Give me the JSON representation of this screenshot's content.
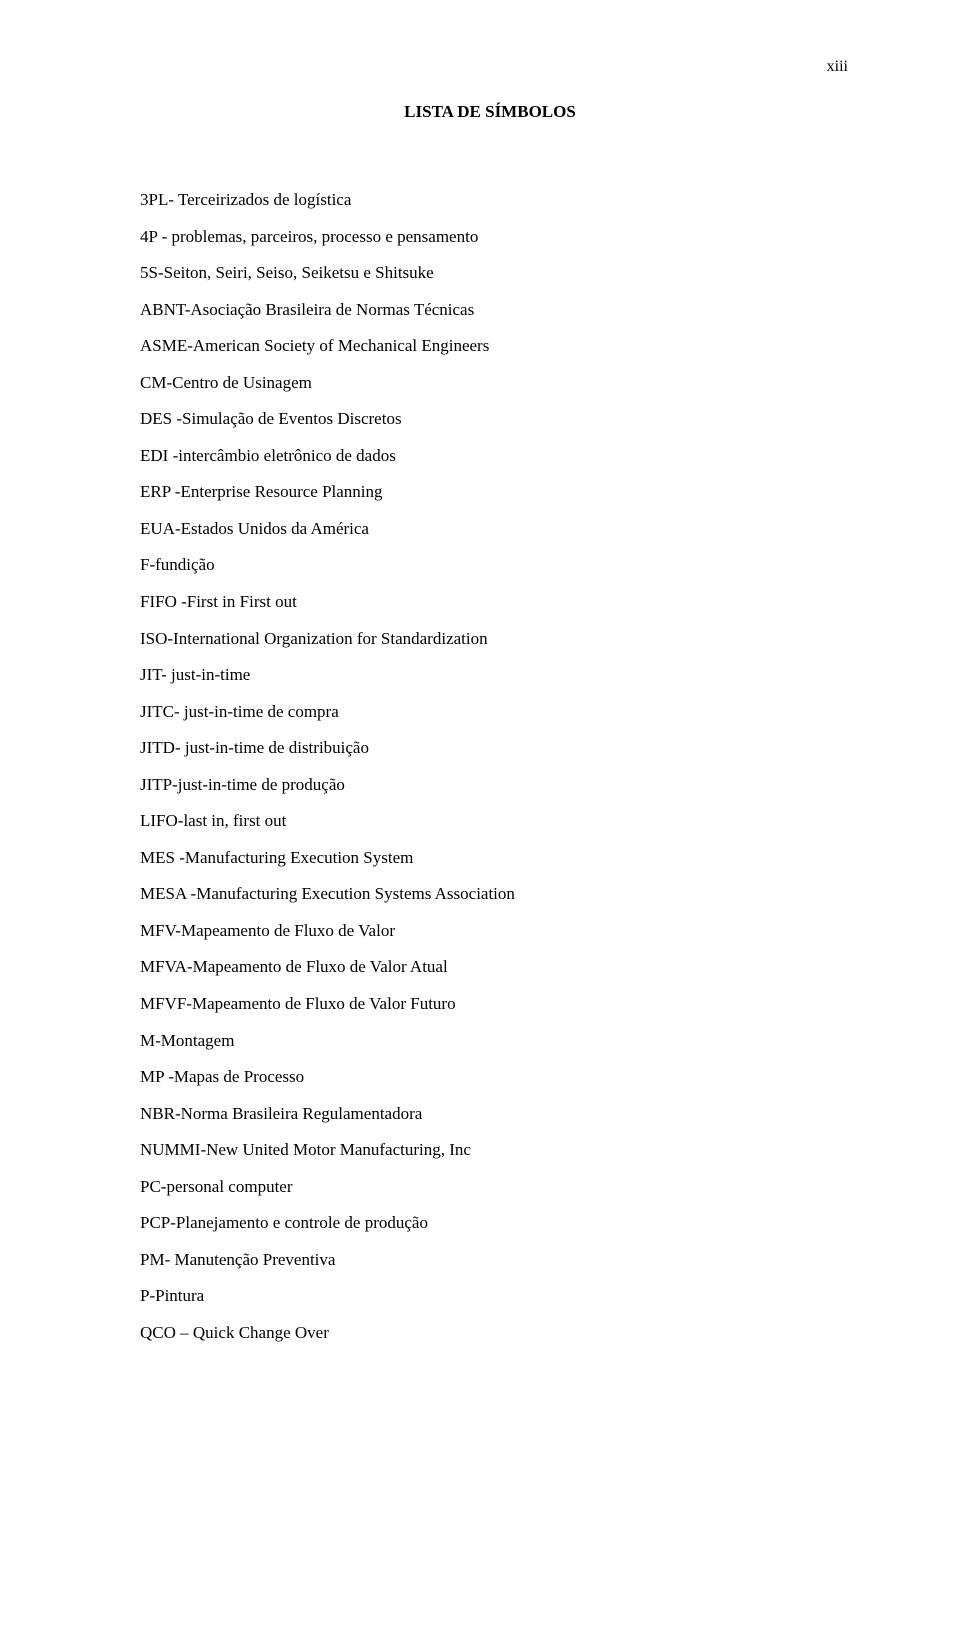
{
  "page": {
    "number": "xiii",
    "title": "LISTA DE SÍMBOLOS"
  },
  "symbols": [
    "3PL- Terceirizados de logística",
    "4P - problemas, parceiros, processo e pensamento",
    "5S-Seiton, Seiri, Seiso, Seiketsu e Shitsuke",
    "ABNT-Asociação Brasileira de Normas Técnicas",
    "ASME-American Society of Mechanical Engineers",
    "CM-Centro de Usinagem",
    "DES -Simulação de Eventos Discretos",
    "EDI -intercâmbio eletrônico de dados",
    "ERP -Enterprise Resource Planning",
    "EUA-Estados Unidos da América",
    "F-fundição",
    "FIFO -First in First out",
    "ISO-International Organization for Standardization",
    "JIT- just-in-time",
    "JITC- just-in-time de compra",
    "JITD- just-in-time de distribuição",
    "JITP-just-in-time de produção",
    "LIFO-last in, first out",
    "MES -Manufacturing Execution System",
    "MESA -Manufacturing Execution Systems Association",
    "MFV-Mapeamento de Fluxo de Valor",
    "MFVA-Mapeamento de Fluxo de Valor Atual",
    "MFVF-Mapeamento de Fluxo de Valor Futuro",
    "M-Montagem",
    "MP -Mapas de Processo",
    "NBR-Norma Brasileira Regulamentadora",
    "NUMMI-New United Motor Manufacturing, Inc",
    "PC-personal computer",
    "PCP-Planejamento e controle de produção",
    "PM- Manutenção Preventiva",
    "P-Pintura",
    "QCO – Quick Change Over"
  ],
  "styles": {
    "background_color": "#ffffff",
    "text_color": "#000000",
    "font_family": "Times New Roman",
    "body_fontsize": 17,
    "title_fontsize": 17,
    "page_number_fontsize": 16,
    "line_height": 2.15
  }
}
